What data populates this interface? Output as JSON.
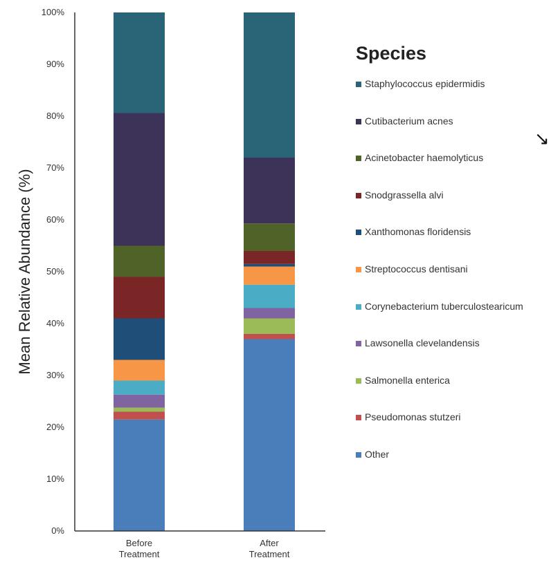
{
  "chart_data": {
    "type": "bar",
    "stacked": true,
    "ylabel": "Mean Relative Abundance (%)",
    "ylim": [
      0,
      100
    ],
    "yticks": [
      "0%",
      "10%",
      "20%",
      "30%",
      "40%",
      "50%",
      "60%",
      "70%",
      "80%",
      "90%",
      "100%"
    ],
    "categories": [
      "Before\nTreatment",
      "After\nTreatment"
    ],
    "legend_title": "Species",
    "legend_position": "right",
    "series": [
      {
        "name": "Other",
        "color": "#4a7ebb",
        "values": [
          21.5,
          37
        ]
      },
      {
        "name": "Pseudomonas stutzeri",
        "color": "#c0504d",
        "values": [
          1.5,
          1
        ]
      },
      {
        "name": "Salmonella enterica",
        "color": "#9bbb59",
        "values": [
          0.8,
          3
        ]
      },
      {
        "name": "Lawsonella clevelandensis",
        "color": "#8064a2",
        "values": [
          2.5,
          2
        ]
      },
      {
        "name": "Corynebacterium tuberculostearicum",
        "color": "#4bacc6",
        "values": [
          2.7,
          4.5
        ]
      },
      {
        "name": "Streptococcus dentisani",
        "color": "#f79646",
        "values": [
          4,
          3.5
        ]
      },
      {
        "name": "Xanthomonas floridensis",
        "color": "#1f4e79",
        "values": [
          8,
          0.5
        ]
      },
      {
        "name": "Snodgrassella alvi",
        "color": "#7b2626",
        "values": [
          8,
          2.5
        ]
      },
      {
        "name": "Acinetobacter haemolyticus",
        "color": "#4f6228",
        "values": [
          6,
          5.3
        ]
      },
      {
        "name": "Cutibacterium acnes",
        "color": "#3d3359",
        "values": [
          25.6,
          12.7
        ]
      },
      {
        "name": "Staphylococcus epidermidis",
        "color": "#2a6577",
        "values": [
          19.4,
          28
        ]
      }
    ]
  },
  "legend": {
    "title": "Species",
    "items": [
      {
        "label": "Staphylococcus epidermidis",
        "color": "#2a6577"
      },
      {
        "label": "Cutibacterium acnes",
        "color": "#3d3359"
      },
      {
        "label": "Acinetobacter haemolyticus",
        "color": "#4f6228"
      },
      {
        "label": "Snodgrassella alvi",
        "color": "#7b2626"
      },
      {
        "label": "Xanthomonas floridensis",
        "color": "#1f4e79"
      },
      {
        "label": "Streptococcus dentisani",
        "color": "#f79646"
      },
      {
        "label": "Corynebacterium tuberculostearicum",
        "color": "#4bacc6"
      },
      {
        "label": "Lawsonella clevelandensis",
        "color": "#8064a2"
      },
      {
        "label": "Salmonella enterica",
        "color": "#9bbb59"
      },
      {
        "label": "Pseudomonas stutzeri",
        "color": "#c0504d"
      },
      {
        "label": "Other",
        "color": "#4a7ebb"
      }
    ]
  },
  "edge_glyph": "↘"
}
